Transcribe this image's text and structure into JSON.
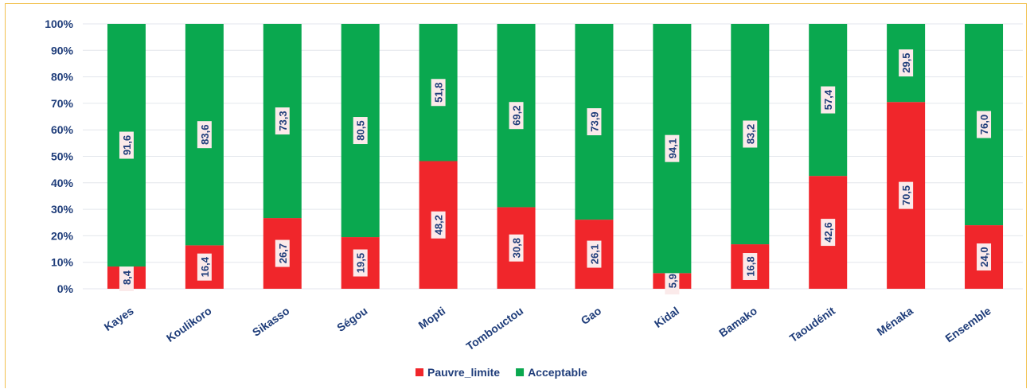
{
  "chart_data": {
    "type": "bar",
    "stacked": true,
    "percent": true,
    "categories": [
      "Kayes",
      "Koulikoro",
      "Sikasso",
      "Ségou",
      "Mopti",
      "Tombouctou",
      "Gao",
      "Kidal",
      "Bamako",
      "Taoudénit",
      "Ménaka",
      "Ensemble"
    ],
    "series": [
      {
        "name": "Pauvre_limite",
        "color": "#f0262b",
        "values": [
          8.4,
          16.4,
          26.7,
          19.5,
          48.2,
          30.8,
          26.1,
          5.9,
          16.8,
          42.6,
          70.5,
          24.0
        ],
        "labels": [
          "8,4",
          "16,4",
          "26,7",
          "19,5",
          "48,2",
          "30,8",
          "26,1",
          "5,9",
          "16,8",
          "42,6",
          "70,5",
          "24,0"
        ]
      },
      {
        "name": "Acceptable",
        "color": "#0aa84f",
        "values": [
          91.6,
          83.6,
          73.3,
          80.5,
          51.8,
          69.2,
          73.9,
          94.1,
          83.2,
          57.4,
          29.5,
          76.0
        ],
        "labels": [
          "91,6",
          "83,6",
          "73,3",
          "80,5",
          "51,8",
          "69,2",
          "73,9",
          "94,1",
          "83,2",
          "57,4",
          "29,5",
          "76,0"
        ]
      }
    ],
    "yticks": [
      "0%",
      "10%",
      "20%",
      "30%",
      "40%",
      "50%",
      "60%",
      "70%",
      "80%",
      "90%",
      "100%"
    ],
    "ylim": [
      0,
      100
    ],
    "grid": true,
    "legend": "bottom",
    "title": "",
    "xlabel": "",
    "ylabel": ""
  }
}
